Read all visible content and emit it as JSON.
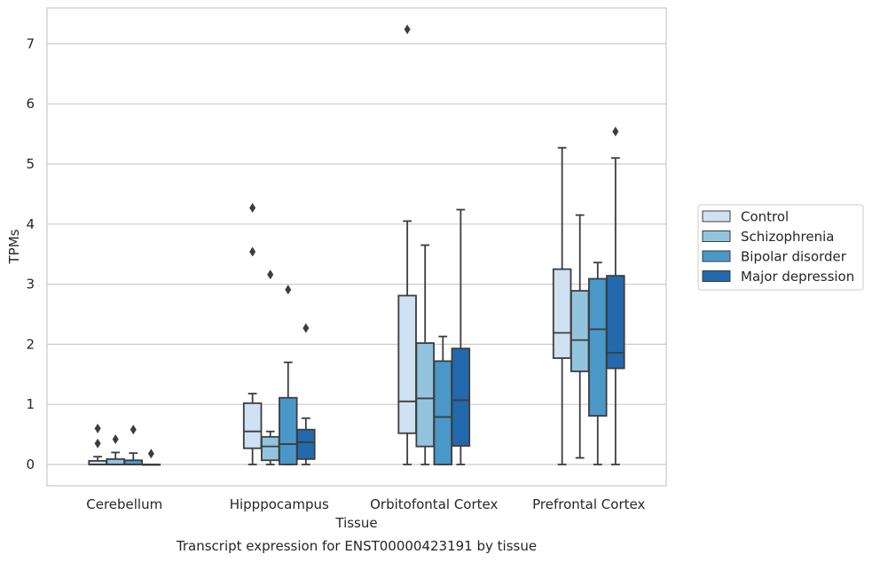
{
  "chart_data": {
    "type": "boxplot",
    "title": "",
    "caption": "Transcript expression for ENST00000423191 by tissue",
    "xlabel": "Tissue",
    "ylabel": "TPMs",
    "ylim": [
      -0.35,
      7.6
    ],
    "yticks": [
      0,
      1,
      2,
      3,
      4,
      5,
      6,
      7
    ],
    "grid": "horizontal",
    "legend_position": "right",
    "categories": [
      "Cerebellum",
      "Hipppocampus",
      "Orbitofontal Cortex",
      "Prefrontal Cortex"
    ],
    "series": [
      {
        "name": "Control",
        "color": "#cfe1f2",
        "boxes": [
          {
            "whislo": 0.0,
            "q1": 0.0,
            "med": 0.0,
            "q3": 0.06,
            "whishi": 0.13,
            "fliers": [
              0.35,
              0.6
            ]
          },
          {
            "whislo": 0.0,
            "q1": 0.27,
            "med": 0.55,
            "q3": 1.02,
            "whishi": 1.18,
            "fliers": [
              3.54,
              4.27
            ]
          },
          {
            "whislo": 0.0,
            "q1": 0.52,
            "med": 1.05,
            "q3": 2.81,
            "whishi": 4.05,
            "fliers": [
              7.24
            ]
          },
          {
            "whislo": 0.0,
            "q1": 1.77,
            "med": 2.19,
            "q3": 3.25,
            "whishi": 5.27,
            "fliers": []
          }
        ]
      },
      {
        "name": "Schizophrenia",
        "color": "#93c4de",
        "boxes": [
          {
            "whislo": 0.0,
            "q1": 0.0,
            "med": 0.0,
            "q3": 0.09,
            "whishi": 0.2,
            "fliers": [
              0.42
            ]
          },
          {
            "whislo": 0.0,
            "q1": 0.07,
            "med": 0.3,
            "q3": 0.46,
            "whishi": 0.55,
            "fliers": [
              3.16
            ]
          },
          {
            "whislo": 0.0,
            "q1": 0.3,
            "med": 1.1,
            "q3": 2.02,
            "whishi": 3.65,
            "fliers": []
          },
          {
            "whislo": 0.11,
            "q1": 1.55,
            "med": 2.07,
            "q3": 2.89,
            "whishi": 4.15,
            "fliers": []
          }
        ]
      },
      {
        "name": "Bipolar disorder",
        "color": "#4a98c9",
        "boxes": [
          {
            "whislo": 0.0,
            "q1": 0.0,
            "med": 0.0,
            "q3": 0.07,
            "whishi": 0.19,
            "fliers": [
              0.58
            ]
          },
          {
            "whislo": 0.0,
            "q1": 0.0,
            "med": 0.34,
            "q3": 1.11,
            "whishi": 1.7,
            "fliers": [
              2.91
            ]
          },
          {
            "whislo": 0.0,
            "q1": 0.0,
            "med": 0.79,
            "q3": 1.72,
            "whishi": 2.13,
            "fliers": []
          },
          {
            "whislo": 0.0,
            "q1": 0.81,
            "med": 2.25,
            "q3": 3.09,
            "whishi": 3.36,
            "fliers": []
          }
        ]
      },
      {
        "name": "Major depression",
        "color": "#2269ad",
        "boxes": [
          {
            "whislo": 0.0,
            "q1": 0.0,
            "med": 0.0,
            "q3": 0.0,
            "whishi": 0.0,
            "fliers": [
              0.18
            ]
          },
          {
            "whislo": 0.0,
            "q1": 0.09,
            "med": 0.37,
            "q3": 0.58,
            "whishi": 0.77,
            "fliers": [
              2.27
            ]
          },
          {
            "whislo": 0.0,
            "q1": 0.31,
            "med": 1.07,
            "q3": 1.93,
            "whishi": 4.24,
            "fliers": []
          },
          {
            "whislo": 0.0,
            "q1": 1.6,
            "med": 1.86,
            "q3": 3.14,
            "whishi": 5.1,
            "fliers": [
              5.54
            ]
          }
        ]
      }
    ]
  }
}
